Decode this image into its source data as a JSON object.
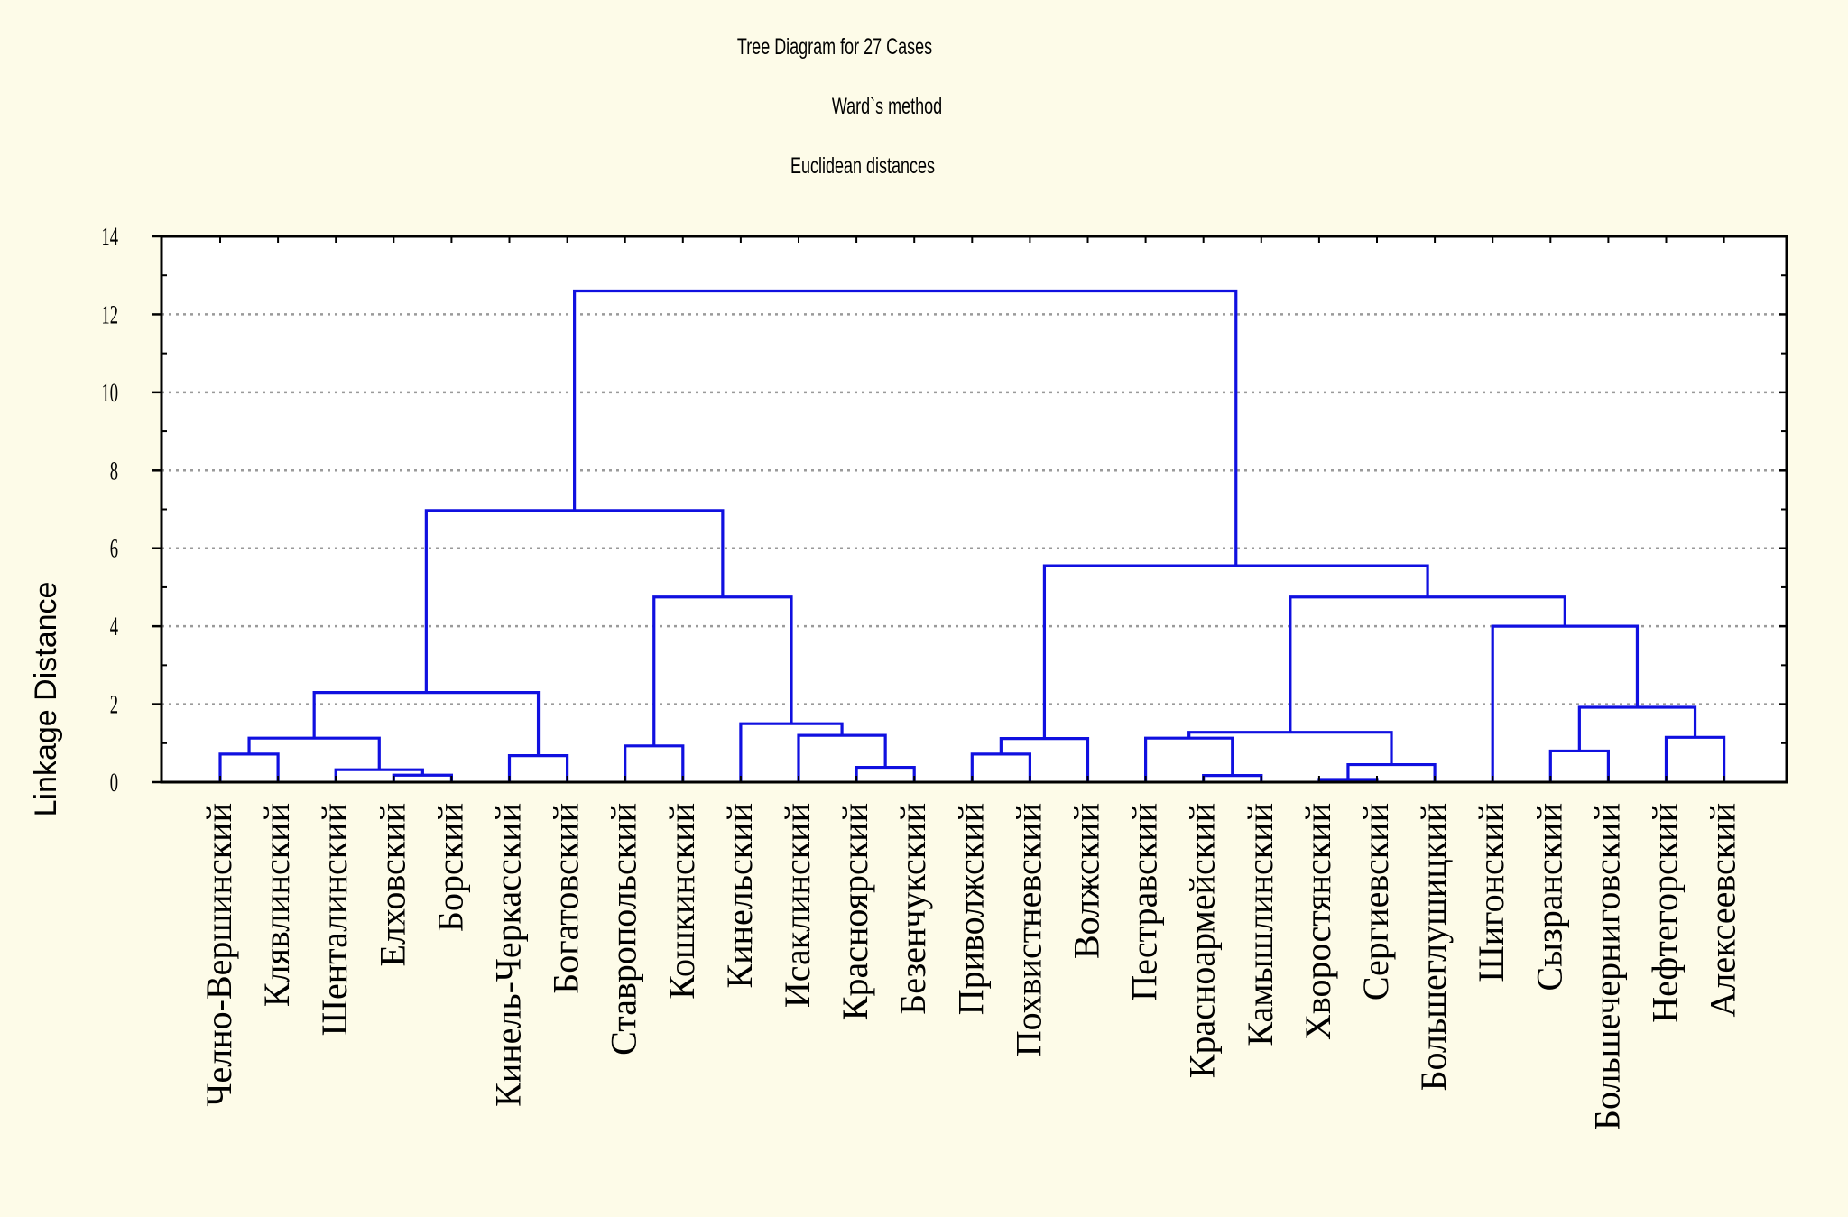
{
  "chart_data": {
    "type": "dendrogram",
    "title": "Tree Diagram for 27 Cases",
    "subtitle_lines": [
      "Ward`s method",
      "Euclidean distances"
    ],
    "ylabel": "Linkage Distance",
    "ylim": [
      0,
      14
    ],
    "yticks": [
      0,
      2,
      4,
      6,
      8,
      10,
      12,
      14
    ],
    "grid": "horizontal dotted",
    "colors": {
      "tree": "#1010e0",
      "frame": "#000000",
      "grid": "#9a9a9a",
      "background": "#fdfbe8",
      "plot_background": "#ffffff"
    },
    "leaves": [
      "Челно-Вершинский",
      "Клявлинский",
      "Шенталинский",
      "Елховский",
      "Борский",
      "Кинель-Черкасский",
      "Богатовский",
      "Ставропольский",
      "Кошкинский",
      "Кинельский",
      "Исаклинский",
      "Красноярский",
      "Безенчукский",
      "Приволжский",
      "Похвистневский",
      "Волжский",
      "Пестравский",
      "Красноармейский",
      "Камышлинский",
      "Хворостянский",
      "Сергиевский",
      "Большеглушицкий",
      "Шигонский",
      "Сызранский",
      "Большечерниговский",
      "Нефтегорский",
      "Алексеевский"
    ],
    "merges": [
      {
        "left": {
          "leaf": 0
        },
        "right": {
          "leaf": 1
        },
        "height": 0.72
      },
      {
        "left": {
          "leaf": 3
        },
        "right": {
          "leaf": 4
        },
        "height": 0.18
      },
      {
        "left": {
          "leaf": 2
        },
        "right": {
          "node": 1
        },
        "height": 0.32
      },
      {
        "left": {
          "node": 0
        },
        "right": {
          "node": 2
        },
        "height": 1.13
      },
      {
        "left": {
          "leaf": 5
        },
        "right": {
          "leaf": 6
        },
        "height": 0.68
      },
      {
        "left": {
          "node": 3
        },
        "right": {
          "node": 4
        },
        "height": 2.3
      },
      {
        "left": {
          "leaf": 7
        },
        "right": {
          "leaf": 8
        },
        "height": 0.93
      },
      {
        "left": {
          "leaf": 11
        },
        "right": {
          "leaf": 12
        },
        "height": 0.38
      },
      {
        "left": {
          "leaf": 10
        },
        "right": {
          "node": 7
        },
        "height": 1.2
      },
      {
        "left": {
          "leaf": 9
        },
        "right": {
          "node": 8
        },
        "height": 1.5
      },
      {
        "left": {
          "node": 6
        },
        "right": {
          "node": 9
        },
        "height": 4.75
      },
      {
        "left": {
          "node": 5
        },
        "right": {
          "node": 10
        },
        "height": 6.97
      },
      {
        "left": {
          "leaf": 13
        },
        "right": {
          "leaf": 14
        },
        "height": 0.72
      },
      {
        "left": {
          "node": 12
        },
        "right": {
          "leaf": 15
        },
        "height": 1.12
      },
      {
        "left": {
          "leaf": 17
        },
        "right": {
          "leaf": 18
        },
        "height": 0.17
      },
      {
        "left": {
          "leaf": 16
        },
        "right": {
          "node": 14
        },
        "height": 1.13
      },
      {
        "left": {
          "leaf": 19
        },
        "right": {
          "leaf": 20
        },
        "height": 0.07
      },
      {
        "left": {
          "node": 16
        },
        "right": {
          "leaf": 21
        },
        "height": 0.45
      },
      {
        "left": {
          "node": 15
        },
        "right": {
          "node": 17
        },
        "height": 1.28
      },
      {
        "left": {
          "leaf": 23
        },
        "right": {
          "leaf": 24
        },
        "height": 0.8
      },
      {
        "left": {
          "leaf": 25
        },
        "right": {
          "leaf": 26
        },
        "height": 1.15
      },
      {
        "left": {
          "node": 19
        },
        "right": {
          "node": 20
        },
        "height": 1.92
      },
      {
        "left": {
          "leaf": 22
        },
        "right": {
          "node": 21
        },
        "height": 4.0
      },
      {
        "left": {
          "node": 18
        },
        "right": {
          "node": 22
        },
        "height": 4.75
      },
      {
        "left": {
          "node": 13
        },
        "right": {
          "node": 23
        },
        "height": 5.55
      },
      {
        "left": {
          "node": 11
        },
        "right": {
          "node": 24
        },
        "height": 12.6
      }
    ]
  }
}
